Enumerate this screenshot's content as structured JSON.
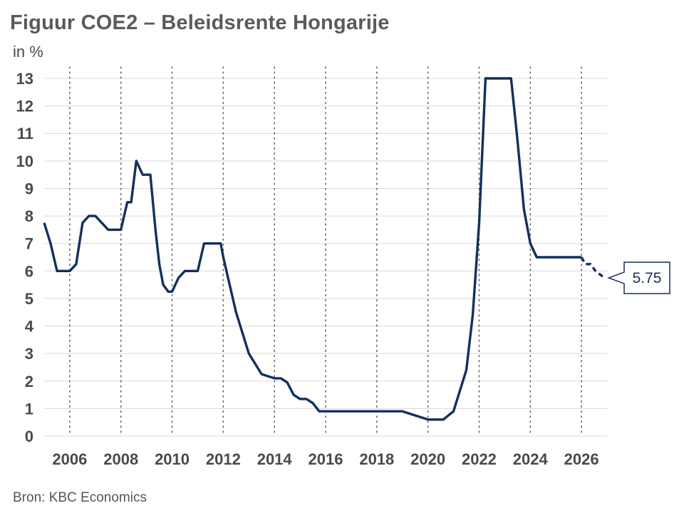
{
  "title": "Figuur COE2 – Beleidsrente Hongarije",
  "subtitle": "in %",
  "source": "Bron: KBC Economics",
  "colors": {
    "line": "#13305c",
    "grid": "#d9d9d9",
    "vgrid": "#666666",
    "text": "#4a4a4a"
  },
  "chart_data": {
    "type": "line",
    "title": "Figuur COE2 – Beleidsrente Hongarije",
    "ylabel": "in %",
    "xlabel": "",
    "ylim": [
      0,
      13
    ],
    "xlim": [
      2005,
      2027
    ],
    "y_ticks": [
      "0",
      "1",
      "2",
      "3",
      "4",
      "5",
      "6",
      "7",
      "8",
      "9",
      "10",
      "11",
      "12",
      "13"
    ],
    "x_ticks": [
      "2006",
      "2008",
      "2010",
      "2012",
      "2014",
      "2016",
      "2018",
      "2020",
      "2022",
      "2024",
      "2026"
    ],
    "grid": "horizontal solid, vertical dotted",
    "series": [
      {
        "style": "solid",
        "x": [
          2005.0,
          2005.25,
          2005.5,
          2006.0,
          2006.25,
          2006.5,
          2006.75,
          2007.0,
          2007.25,
          2007.5,
          2007.75,
          2008.0,
          2008.25,
          2008.4,
          2008.6,
          2008.85,
          2009.0,
          2009.15,
          2009.35,
          2009.5,
          2009.65,
          2009.85,
          2010.0,
          2010.25,
          2010.5,
          2010.75,
          2011.0,
          2011.25,
          2011.5,
          2011.75,
          2011.9,
          2012.0,
          2012.25,
          2012.5,
          2013.0,
          2013.5,
          2014.0,
          2014.25,
          2014.5,
          2014.75,
          2015.0,
          2015.25,
          2015.5,
          2015.75,
          2016.0,
          2016.25,
          2016.5,
          2016.75,
          2017.0,
          2018.0,
          2019.0,
          2020.0,
          2020.25,
          2020.6,
          2021.0,
          2021.25,
          2021.5,
          2021.75,
          2022.0,
          2022.25,
          2022.5,
          2022.75,
          2023.0,
          2023.25,
          2023.5,
          2023.75,
          2024.0,
          2024.25,
          2024.5,
          2024.75,
          2025.0,
          2025.5,
          2025.75,
          2026.0
        ],
        "y": [
          7.75,
          7.0,
          6.0,
          6.0,
          6.25,
          7.75,
          8.0,
          8.0,
          7.75,
          7.5,
          7.5,
          7.5,
          8.5,
          8.5,
          10.0,
          9.5,
          9.5,
          9.5,
          7.5,
          6.25,
          5.5,
          5.25,
          5.25,
          5.75,
          6.0,
          6.0,
          6.0,
          7.0,
          7.0,
          7.0,
          7.0,
          6.5,
          5.5,
          4.5,
          3.0,
          2.25,
          2.1,
          2.1,
          1.95,
          1.5,
          1.35,
          1.35,
          1.2,
          0.9,
          0.9,
          0.9,
          0.9,
          0.9,
          0.9,
          0.9,
          0.9,
          0.6,
          0.6,
          0.6,
          0.9,
          1.65,
          2.4,
          4.4,
          7.75,
          13.0,
          13.0,
          13.0,
          13.0,
          13.0,
          10.75,
          8.25,
          7.0,
          6.5,
          6.5,
          6.5,
          6.5,
          6.5,
          6.5,
          6.5
        ]
      },
      {
        "style": "dashed",
        "x": [
          2026.0,
          2026.15,
          2026.35,
          2026.55,
          2026.9
        ],
        "y": [
          6.5,
          6.25,
          6.25,
          6.0,
          5.75
        ]
      }
    ],
    "annotation": {
      "text": "5.75",
      "x": 2026.9,
      "y": 5.75
    }
  }
}
